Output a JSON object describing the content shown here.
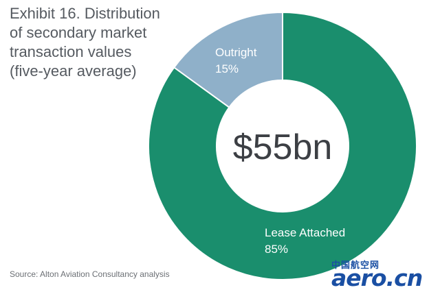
{
  "title_lines": [
    "Exhibit 16. Distribution",
    "of secondary market",
    "transaction values",
    "(five-year average)"
  ],
  "center_label": "$55bn",
  "source": "Source: Alton Aviation Consultancy analysis",
  "watermark": {
    "cn": "中国航空网",
    "latin": "aero.cn"
  },
  "chart_data": {
    "type": "pie",
    "variant": "donut",
    "title": "Exhibit 16. Distribution of secondary market transaction values (five-year average)",
    "total_label": "$55bn",
    "slices": [
      {
        "label": "Lease Attached",
        "value": 85,
        "value_label": "85%",
        "color": "#1a8e6d"
      },
      {
        "label": "Outright",
        "value": 15,
        "value_label": "15%",
        "color": "#8fb0c9"
      }
    ]
  },
  "colors": {
    "title_text": "#555a60",
    "center_text": "#3c3f44",
    "slice_label_text": "#ffffff",
    "watermark": "#1a4fa3"
  }
}
